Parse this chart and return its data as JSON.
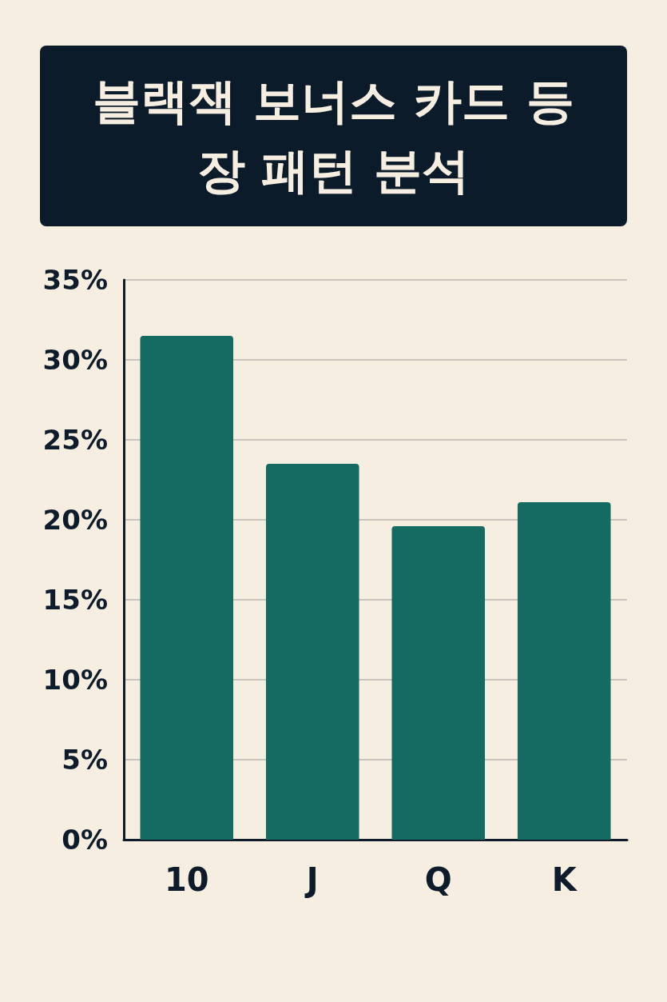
{
  "chart_data": {
    "type": "bar",
    "title": "블랙잭 보너스 카드 등장 패턴 분석",
    "categories": [
      "10",
      "J",
      "Q",
      "K"
    ],
    "values": [
      31.5,
      23.5,
      19.6,
      21.1
    ],
    "color": "#146b61",
    "ylim": [
      0,
      35
    ],
    "yticks": [
      {
        "value": 0,
        "label": "0%"
      },
      {
        "value": 5,
        "label": "5%"
      },
      {
        "value": 10,
        "label": "10%"
      },
      {
        "value": 15,
        "label": "15%"
      },
      {
        "value": 20,
        "label": "20%"
      },
      {
        "value": 25,
        "label": "25%"
      },
      {
        "value": 30,
        "label": "30%"
      },
      {
        "value": 35,
        "label": "35%"
      }
    ],
    "grid": "y"
  }
}
